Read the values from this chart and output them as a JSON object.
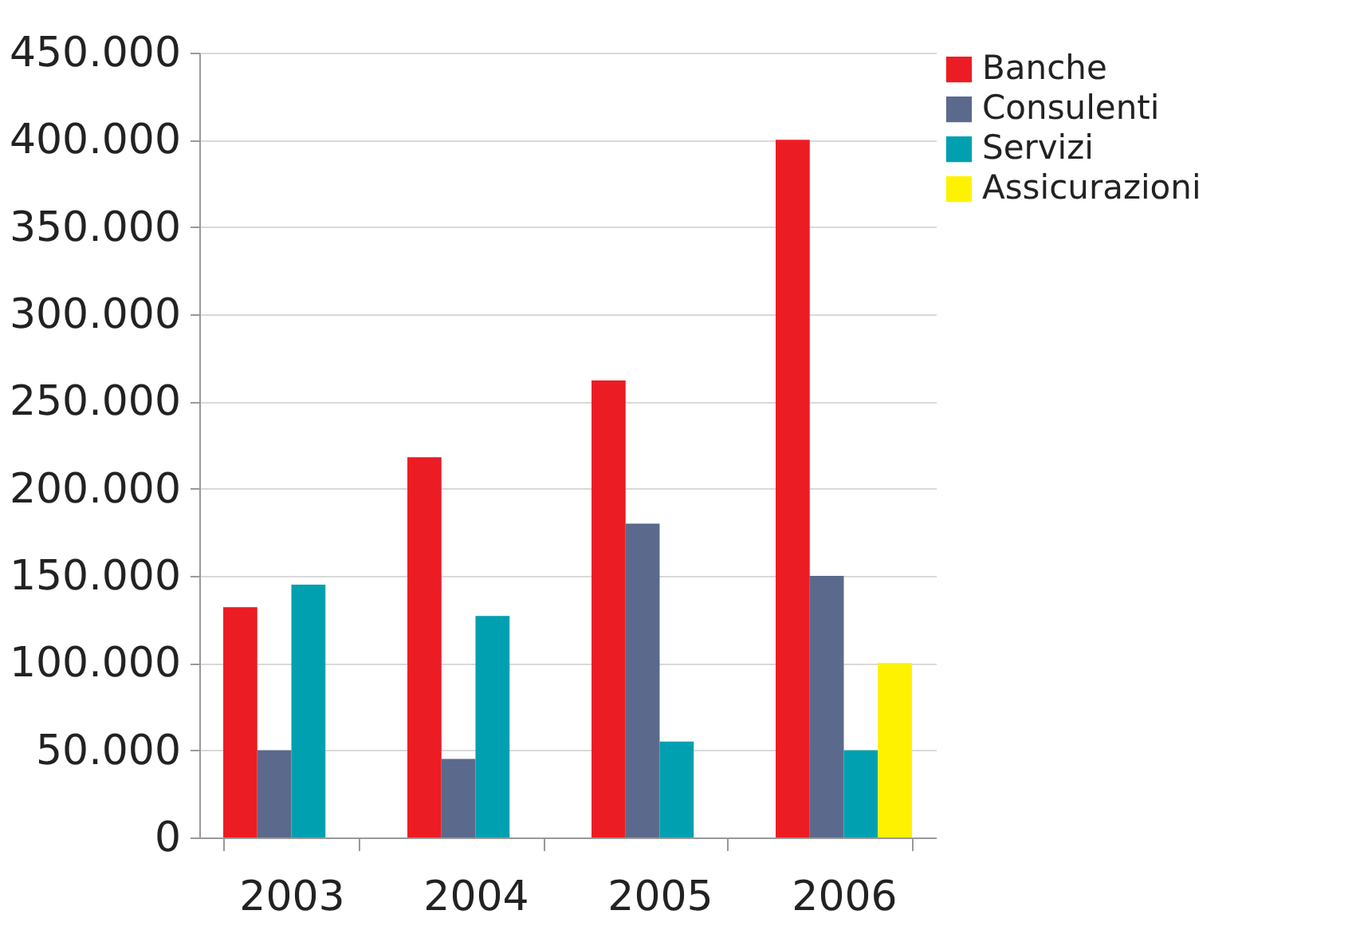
{
  "chart_data": {
    "type": "bar",
    "categories": [
      "2003",
      "2004",
      "2005",
      "2006"
    ],
    "series": [
      {
        "name": "Banche",
        "color": "#ec1c24",
        "values": [
          132000,
          218000,
          262000,
          400000
        ]
      },
      {
        "name": "Consulenti",
        "color": "#5b6a8c",
        "values": [
          50000,
          45000,
          180000,
          150000
        ]
      },
      {
        "name": "Servizi",
        "color": "#00a0b0",
        "values": [
          145000,
          127000,
          55000,
          50000
        ]
      },
      {
        "name": "Assicurazioni",
        "color": "#fff200",
        "values": [
          null,
          null,
          null,
          100000
        ]
      }
    ],
    "ylim": [
      0,
      450000
    ],
    "yticks": [
      {
        "value": 0,
        "label": "0"
      },
      {
        "value": 50000,
        "label": "50.000"
      },
      {
        "value": 100000,
        "label": "100.000"
      },
      {
        "value": 150000,
        "label": "150.000"
      },
      {
        "value": 200000,
        "label": "200.000"
      },
      {
        "value": 250000,
        "label": "250.000"
      },
      {
        "value": 300000,
        "label": "300.000"
      },
      {
        "value": 350000,
        "label": "350.000"
      },
      {
        "value": 400000,
        "label": "400.000"
      },
      {
        "value": 450000,
        "label": "450.000"
      }
    ],
    "grid": "y",
    "legend": "right"
  }
}
